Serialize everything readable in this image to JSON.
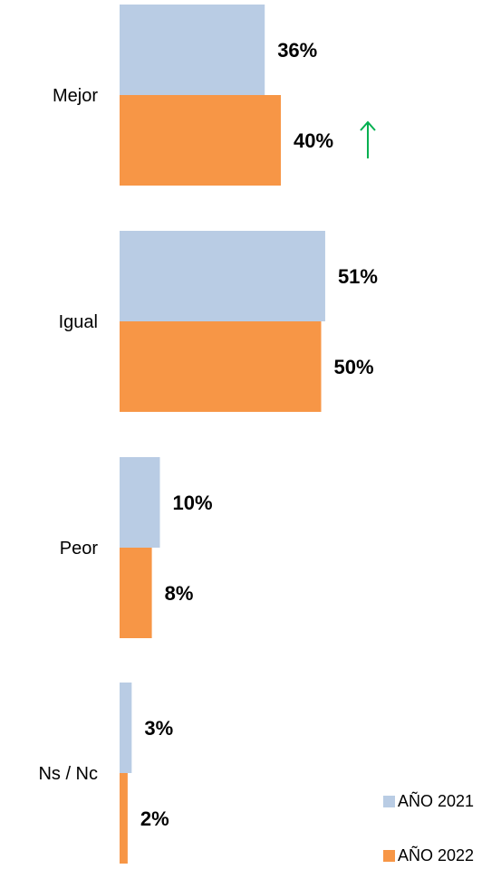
{
  "chart_data": {
    "type": "bar",
    "orientation": "horizontal",
    "categories": [
      "Mejor",
      "Igual",
      "Peor",
      "Ns / Nc"
    ],
    "series": [
      {
        "name": "AÑO 2021",
        "values": [
          36,
          51,
          10,
          3
        ],
        "labels": [
          "36%",
          "51%",
          "10%",
          "3%"
        ],
        "color": "#b9cce4"
      },
      {
        "name": "AÑO 2022",
        "values": [
          40,
          50,
          8,
          2
        ],
        "labels": [
          "40%",
          "50%",
          "8%",
          "2%"
        ],
        "color": "#f79646"
      }
    ],
    "unit": "%",
    "xlim": [
      0,
      100
    ],
    "grid": false,
    "legend_position": "bottom-right",
    "annotations": [
      {
        "category": "Mejor",
        "series": "AÑO 2022",
        "symbol": "up-arrow",
        "color": "#00b050"
      }
    ]
  }
}
